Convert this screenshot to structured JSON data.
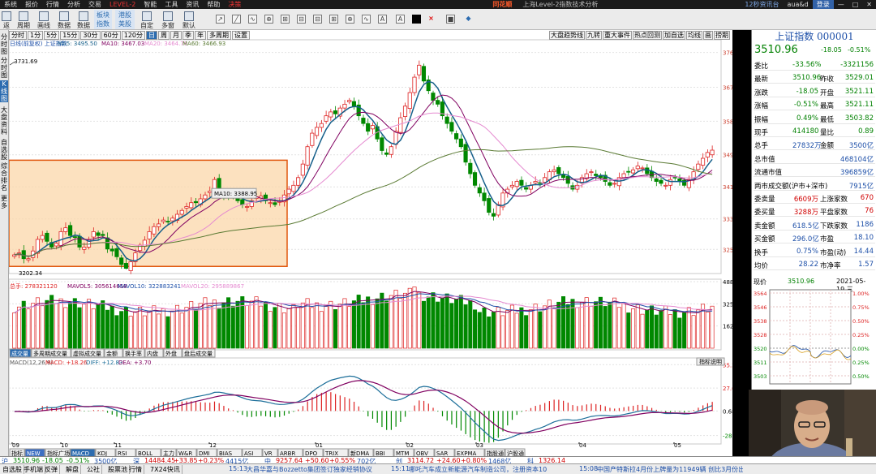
{
  "menu": {
    "items": [
      "系统",
      "报价",
      "行情",
      "分析",
      "交易",
      "LEVEL-2",
      "智能",
      "工具",
      "资讯",
      "帮助",
      "决策"
    ],
    "brand": "同花顺",
    "window_title": "上海Level-2指数技术分析",
    "right_badge": "12秒资讯台",
    "right_text": "aua&d",
    "login": "登录"
  },
  "toolbar": {
    "left_btns": [
      "返回",
      "周期",
      "画线",
      "数据",
      "指数",
      "美股"
    ],
    "small_btns": [
      "板块",
      "指数",
      "港股",
      "美股",
      "自定",
      "分析"
    ],
    "right_btns": [
      "分时",
      "多窗",
      "默认"
    ],
    "back_label": "返回",
    "tools": [
      "↗",
      "╱",
      "∿",
      "⊕",
      "⊞",
      "⊟",
      "A",
      "■",
      "×",
      "◆"
    ]
  },
  "leftrail": {
    "tabs": [
      "分时图",
      "K线图",
      "大盘资料",
      "自选股",
      "综合排名",
      "更多"
    ]
  },
  "period_tabs": [
    "分时",
    "1分",
    "5分",
    "15分",
    "30分",
    "60分",
    "120分",
    "日",
    "周",
    "月",
    "季",
    "年",
    "多周期",
    "设置"
  ],
  "period_active": "日",
  "right_tools": [
    "大盘趋势线",
    "九转",
    "重大事件",
    "热点回测",
    "加自选",
    "均线",
    "画",
    "捞期"
  ],
  "kline": {
    "legend_title": "日线(前复权) 上证指数",
    "ma5": "MA5: 3495.50",
    "ma10": "MA10: 3467.03",
    "ma20": "MA20: 3464.79",
    "ma60": "MA60: 3466.93",
    "high_label": "3731.69",
    "low_label": "3202.34",
    "tooltip": "MA10: 3388.95",
    "yticks": [
      "3764",
      "3674",
      "3586",
      "3499",
      "3416",
      "3333",
      "3254"
    ]
  },
  "volume": {
    "legend": "总手: 278321120",
    "mavol5": "MAVOL5: 305614658",
    "mavol10": "MAVOL10: 322883241",
    "mavol20": "MAVOL20: 295889867",
    "yticks": [
      "48882",
      "32588",
      "16294"
    ],
    "tabs": [
      "成交量",
      "多周期成交量",
      "虚拟成交量",
      "金额",
      "换手率",
      "内盘",
      "外盘",
      "盘后成交量"
    ]
  },
  "macd": {
    "legend": "MACD(12,26,9)",
    "macd": "MACD: +18.26",
    "diff": "DIFF: +12.83",
    "dea": "DEA: +3.70",
    "yticks": [
      "55.30",
      "27.65",
      "0.683",
      "-28.33"
    ],
    "help": "指标说明"
  },
  "xaxis": [
    "09",
    "10",
    "11",
    "12",
    "01",
    "02",
    "03",
    "04",
    "05"
  ],
  "indicator_tabs": [
    "指标",
    "NEW",
    "指标广场",
    "MACD",
    "KDJ",
    "RSI",
    "BOLL",
    "主力",
    "W&R",
    "DMI",
    "BIAS",
    "ASI",
    "VR",
    "ARBR",
    "DPO",
    "TRIX",
    "新DMA",
    "BBI",
    "MTM",
    "OBV",
    "SAR",
    "EXPMA",
    "指股通",
    "沪股通"
  ],
  "indicator_active": "MACD",
  "quote": {
    "name": "上证指数 000001",
    "price": "3510.96",
    "change": "-18.05",
    "pct": "-0.51%",
    "rows": [
      {
        "l": "委比",
        "v": "-33.56%",
        "l2": "",
        "v2": "-3321156",
        "c": "g"
      },
      {
        "l": "最新",
        "v": "3510.96",
        "l2": "昨收",
        "v2": "3529.01",
        "c": "g"
      },
      {
        "l": "涨跌",
        "v": "-18.05",
        "l2": "开盘",
        "v2": "3521.11",
        "c": "g"
      },
      {
        "l": "涨幅",
        "v": "-0.51%",
        "l2": "最高",
        "v2": "3521.11",
        "c": "g"
      },
      {
        "l": "振幅",
        "v": "0.49%",
        "l2": "最低",
        "v2": "3503.82",
        "c": "g"
      },
      {
        "l": "现手",
        "v": "414180",
        "l2": "量比",
        "v2": "0.89",
        "c": "g"
      },
      {
        "l": "总手",
        "v": "27832万",
        "l2": "金额",
        "v2": "3500亿",
        "c": "b"
      },
      {
        "l": "总市值",
        "v": "",
        "l2": "",
        "v2": "468104亿",
        "c": "b"
      },
      {
        "l": "流通市值",
        "v": "",
        "l2": "",
        "v2": "396859亿",
        "c": "b"
      },
      {
        "l": "两市成交额(沪市+深市)",
        "v": "",
        "l2": "",
        "v2": "7915亿",
        "c": "b"
      },
      {
        "l": "委卖量",
        "v": "6609万",
        "l2": "上涨家数",
        "v2": "670",
        "c": "r"
      },
      {
        "l": "委买量",
        "v": "3288万",
        "l2": "平盘家数",
        "v2": "76",
        "c": "r"
      },
      {
        "l": "卖金额",
        "v": "618.5亿",
        "l2": "下跌家数",
        "v2": "1186",
        "c": "b"
      },
      {
        "l": "买金额",
        "v": "296.0亿",
        "l2": "市盈",
        "v2": "18.10",
        "c": "b"
      },
      {
        "l": "换手",
        "v": "0.75%",
        "l2": "市盈(动)",
        "v2": "14.44",
        "c": "b"
      },
      {
        "l": "均价",
        "v": "28.22",
        "l2": "市净率",
        "v2": "1.57",
        "c": "b"
      }
    ],
    "mini_label": "现价",
    "mini_price": "3510.96",
    "mini_date": "2021-05-19,三",
    "mini_yticks": [
      "3564",
      "3546",
      "3538",
      "3528",
      "3520",
      "3511",
      "3503"
    ],
    "mini_pct": [
      "1.00%",
      "0.75%",
      "0.50%",
      "0.25%",
      "0.00%",
      "0.25%",
      "0.50%"
    ]
  },
  "ticker": [
    {
      "t": "沪",
      "c": "b"
    },
    {
      "t": "3510.96",
      "c": "g"
    },
    {
      "t": "-18.05",
      "c": "g"
    },
    {
      "t": "-0.51%",
      "c": "g"
    },
    {
      "t": "3500亿",
      "c": "b"
    },
    {
      "t": "深",
      "c": "b"
    },
    {
      "t": "14484.45",
      "c": "r"
    },
    {
      "t": "+33.85",
      "c": "r"
    },
    {
      "t": "+0.23%",
      "c": "r"
    },
    {
      "t": "4415亿",
      "c": "b"
    },
    {
      "t": "中",
      "c": "b"
    },
    {
      "t": "9257.64",
      "c": "r"
    },
    {
      "t": "+50.60",
      "c": "r"
    },
    {
      "t": "+0.55%",
      "c": "r"
    },
    {
      "t": "702亿",
      "c": "b"
    },
    {
      "t": "创",
      "c": "b"
    },
    {
      "t": "3114.72",
      "c": "r"
    },
    {
      "t": "+24.60",
      "c": "r"
    },
    {
      "t": "+0.80%",
      "c": "r"
    },
    {
      "t": "1468亿",
      "c": "b"
    },
    {
      "t": "科",
      "c": "b"
    },
    {
      "t": "1326.14",
      "c": "r"
    }
  ],
  "bottom": {
    "tabs": [
      "自选股",
      "手机端",
      "反弹",
      "解盘",
      "公社",
      "股票池",
      "行情",
      "7X24快讯"
    ],
    "news": [
      {
        "time": "15:13",
        "text": "大昌华嘉与Bozzetto集团签订独家经销协议"
      },
      {
        "time": "15:11",
        "text": "哪吒汽车成立新能源汽车制造公司，注册资本10亿元"
      },
      {
        "time": "15:08",
        "text": "中国产特斯拉4月份上牌量为11949辆 创比3月份出现了大"
      }
    ]
  },
  "chart_data": {
    "type": "candlestick",
    "title": "上证指数",
    "xlabel": "",
    "ylabel": "",
    "price_ylim": [
      3200,
      3780
    ],
    "months": [
      "09",
      "10",
      "11",
      "12",
      "01",
      "02",
      "03",
      "04",
      "05"
    ],
    "highs_lows": {
      "high": 3731.69,
      "low": 3202.34
    },
    "close_path": [
      3240,
      3245,
      3230,
      3230,
      3250,
      3280,
      3290,
      3275,
      3260,
      3270,
      3300,
      3310,
      3290,
      3285,
      3260,
      3260,
      3280,
      3300,
      3290,
      3290,
      3255,
      3250,
      3235,
      3215,
      3205,
      3222,
      3245,
      3265,
      3278,
      3300,
      3313,
      3320,
      3330,
      3325,
      3335,
      3345,
      3355,
      3365,
      3375,
      3375,
      3385,
      3395,
      3405,
      3435,
      3410,
      3395,
      3390,
      3395,
      3380,
      3370,
      3365,
      3380,
      3390,
      3392,
      3380,
      3375,
      3370,
      3380,
      3395,
      3410,
      3420,
      3440,
      3475,
      3520,
      3555,
      3570,
      3580,
      3600,
      3610,
      3605,
      3620,
      3630,
      3640,
      3625,
      3600,
      3580,
      3560,
      3575,
      3540,
      3510,
      3500,
      3520,
      3560,
      3595,
      3625,
      3660,
      3700,
      3731,
      3690,
      3665,
      3640,
      3630,
      3600,
      3580,
      3560,
      3540,
      3520,
      3480,
      3450,
      3420,
      3400,
      3380,
      3350,
      3340,
      3370,
      3400,
      3410,
      3420,
      3430,
      3420,
      3410,
      3420,
      3430,
      3425,
      3440,
      3455,
      3460,
      3450,
      3440,
      3425,
      3410,
      3420,
      3440,
      3450,
      3455,
      3445,
      3440,
      3430,
      3420,
      3425,
      3440,
      3450,
      3455,
      3460,
      3470,
      3465,
      3450,
      3440,
      3430,
      3425,
      3420,
      3435,
      3440,
      3430,
      3420,
      3435,
      3455,
      3475,
      3490,
      3505,
      3511
    ],
    "volume_max": 48882,
    "macd_range": [
      -28.33,
      55.3
    ]
  }
}
